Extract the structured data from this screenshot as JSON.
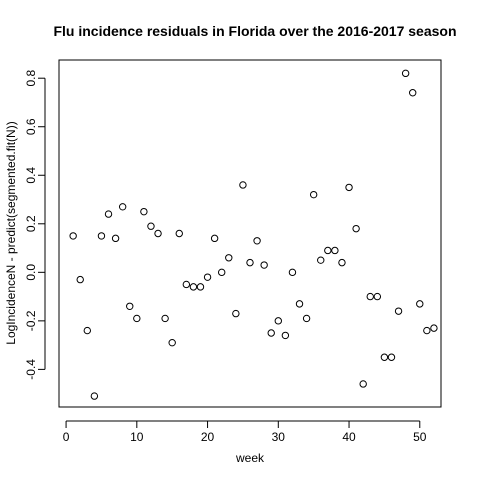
{
  "chart_data": {
    "type": "scatter",
    "title": "Flu incidence residuals in Florida over the 2016-2017 season",
    "xlabel": "week",
    "ylabel": "LogIncidenceN - predict(segmented.fit(N))",
    "xlim": [
      -1,
      53
    ],
    "ylim": [
      -0.555,
      0.875
    ],
    "xticks": [
      0,
      10,
      20,
      30,
      40,
      50
    ],
    "yticks": [
      -0.4,
      -0.2,
      0.0,
      0.2,
      0.4,
      0.6,
      0.8
    ],
    "xtick_labels": [
      "0",
      "10",
      "20",
      "30",
      "40",
      "50"
    ],
    "ytick_labels": [
      "-0.4",
      "-0.2",
      "0.0",
      "0.2",
      "0.4",
      "0.6",
      "0.8"
    ],
    "grid": false,
    "legend": "none",
    "marker": "open-circle",
    "colors": {
      "marker": "#000000",
      "background": "#ffffff"
    },
    "x": [
      1,
      2,
      3,
      4,
      5,
      6,
      7,
      8,
      9,
      10,
      11,
      12,
      13,
      14,
      15,
      16,
      17,
      18,
      19,
      20,
      21,
      22,
      23,
      24,
      25,
      26,
      27,
      28,
      29,
      30,
      31,
      32,
      33,
      34,
      35,
      36,
      37,
      38,
      39,
      40,
      41,
      42,
      43,
      44,
      45,
      46,
      47,
      48,
      49,
      50,
      51,
      52
    ],
    "y": [
      0.15,
      -0.03,
      -0.24,
      -0.51,
      0.15,
      0.24,
      0.14,
      0.27,
      -0.14,
      -0.19,
      0.25,
      0.19,
      0.16,
      -0.19,
      -0.29,
      0.16,
      -0.05,
      -0.06,
      -0.06,
      -0.02,
      0.14,
      0.0,
      0.06,
      -0.17,
      0.36,
      0.04,
      0.13,
      0.03,
      -0.25,
      -0.2,
      -0.26,
      0.0,
      -0.13,
      -0.19,
      0.32,
      0.05,
      0.09,
      0.09,
      0.04,
      0.35,
      0.18,
      -0.46,
      -0.1,
      -0.1,
      -0.35,
      -0.35,
      -0.16,
      0.82,
      0.74,
      -0.13,
      -0.24,
      -0.23
    ]
  }
}
